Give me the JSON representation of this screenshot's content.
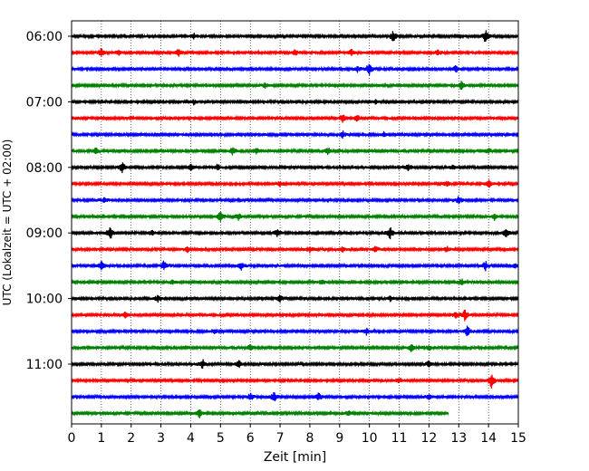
{
  "chart_data": {
    "type": "line",
    "title": "",
    "xlabel": "Zeit  [min]",
    "ylabel": "UTC (Lokalzeit = UTC + 02:00)",
    "x_ticks": [
      "0",
      "1",
      "2",
      "3",
      "4",
      "5",
      "6",
      "7",
      "8",
      "9",
      "10",
      "11",
      "12",
      "13",
      "14",
      "15"
    ],
    "y_ticks": [
      "06:00",
      "07:00",
      "08:00",
      "09:00",
      "10:00",
      "11:00"
    ],
    "xlim": [
      0,
      15
    ],
    "grid": "vertical dotted",
    "row_interval_minutes": 15,
    "row_colors": [
      "#000000",
      "#ff0000",
      "#0000ff",
      "#008000"
    ],
    "rows": [
      {
        "start": "06:00",
        "end_minute": 15,
        "events": [
          [
            10.8,
            1.0
          ],
          [
            13.9,
            1.3
          ],
          [
            4.1,
            0.6
          ]
        ]
      },
      {
        "start": "06:15",
        "end_minute": 15,
        "events": [
          [
            1.0,
            0.8
          ],
          [
            1.6,
            0.6
          ],
          [
            3.6,
            0.8
          ],
          [
            7.5,
            0.5
          ],
          [
            9.4,
            0.7
          ],
          [
            12.3,
            0.5
          ]
        ]
      },
      {
        "start": "06:30",
        "end_minute": 15,
        "events": [
          [
            9.6,
            0.5
          ],
          [
            10.0,
            1.3
          ],
          [
            12.9,
            0.6
          ]
        ]
      },
      {
        "start": "06:45",
        "end_minute": 15,
        "events": [
          [
            6.5,
            0.5
          ],
          [
            13.1,
            0.9
          ]
        ]
      },
      {
        "start": "07:00",
        "end_minute": 15,
        "events": [
          [
            4.1,
            0.4
          ],
          [
            10.2,
            0.4
          ]
        ]
      },
      {
        "start": "07:15",
        "end_minute": 15,
        "events": [
          [
            9.1,
            0.9
          ],
          [
            9.6,
            0.6
          ]
        ]
      },
      {
        "start": "07:30",
        "end_minute": 15,
        "events": [
          [
            9.1,
            0.7
          ],
          [
            10.5,
            0.5
          ]
        ]
      },
      {
        "start": "07:45",
        "end_minute": 15,
        "events": [
          [
            0.8,
            0.6
          ],
          [
            5.4,
            0.8
          ],
          [
            6.2,
            0.6
          ],
          [
            8.6,
            0.7
          ],
          [
            14.0,
            0.6
          ]
        ]
      },
      {
        "start": "08:00",
        "end_minute": 15,
        "events": [
          [
            1.7,
            1.0
          ],
          [
            4.0,
            0.6
          ],
          [
            4.9,
            0.6
          ],
          [
            11.3,
            0.8
          ],
          [
            12.8,
            0.5
          ]
        ]
      },
      {
        "start": "08:15",
        "end_minute": 15,
        "events": [
          [
            7.0,
            0.5
          ],
          [
            12.6,
            0.5
          ],
          [
            14.0,
            0.7
          ]
        ]
      },
      {
        "start": "08:30",
        "end_minute": 15,
        "events": [
          [
            1.1,
            0.5
          ],
          [
            13.0,
            0.8
          ]
        ]
      },
      {
        "start": "08:45",
        "end_minute": 15,
        "events": [
          [
            5.0,
            1.1
          ],
          [
            5.6,
            0.7
          ],
          [
            14.2,
            0.6
          ]
        ]
      },
      {
        "start": "09:00",
        "end_minute": 15,
        "events": [
          [
            1.3,
            1.3
          ],
          [
            2.7,
            0.5
          ],
          [
            6.9,
            0.7
          ],
          [
            10.7,
            1.2
          ],
          [
            14.6,
            0.9
          ]
        ]
      },
      {
        "start": "09:15",
        "end_minute": 15,
        "events": [
          [
            3.9,
            0.5
          ],
          [
            8.0,
            0.6
          ],
          [
            9.1,
            0.5
          ],
          [
            10.2,
            0.6
          ],
          [
            12.6,
            0.5
          ]
        ]
      },
      {
        "start": "09:30",
        "end_minute": 15,
        "events": [
          [
            1.0,
            1.0
          ],
          [
            3.1,
            1.0
          ],
          [
            5.7,
            0.7
          ],
          [
            13.9,
            0.8
          ],
          [
            14.9,
            0.5
          ]
        ]
      },
      {
        "start": "09:45",
        "end_minute": 15,
        "events": [
          [
            3.4,
            0.5
          ],
          [
            8.4,
            0.5
          ],
          [
            13.1,
            0.6
          ]
        ]
      },
      {
        "start": "10:00",
        "end_minute": 15,
        "events": [
          [
            2.9,
            0.6
          ],
          [
            7.0,
            0.7
          ],
          [
            10.7,
            0.5
          ]
        ]
      },
      {
        "start": "10:15",
        "end_minute": 15,
        "events": [
          [
            1.8,
            0.6
          ],
          [
            12.9,
            0.5
          ],
          [
            13.2,
            1.1
          ]
        ]
      },
      {
        "start": "10:30",
        "end_minute": 15,
        "events": [
          [
            4.8,
            0.5
          ],
          [
            9.9,
            0.6
          ],
          [
            13.3,
            1.0
          ]
        ]
      },
      {
        "start": "10:45",
        "end_minute": 15,
        "events": [
          [
            6.0,
            0.5
          ],
          [
            11.4,
            0.9
          ],
          [
            12.0,
            0.5
          ]
        ]
      },
      {
        "start": "11:00",
        "end_minute": 15,
        "events": [
          [
            4.4,
            0.9
          ],
          [
            5.6,
            0.8
          ],
          [
            12.0,
            0.7
          ]
        ]
      },
      {
        "start": "11:15",
        "end_minute": 15,
        "events": [
          [
            11.0,
            0.5
          ],
          [
            14.1,
            1.4
          ]
        ]
      },
      {
        "start": "11:30",
        "end_minute": 15,
        "events": [
          [
            6.0,
            0.7
          ],
          [
            6.8,
            1.0
          ],
          [
            8.3,
            0.7
          ],
          [
            12.0,
            0.5
          ]
        ]
      },
      {
        "start": "11:45",
        "end_minute": 12.65,
        "events": [
          [
            4.3,
            0.8
          ],
          [
            9.3,
            0.5
          ]
        ]
      }
    ]
  }
}
